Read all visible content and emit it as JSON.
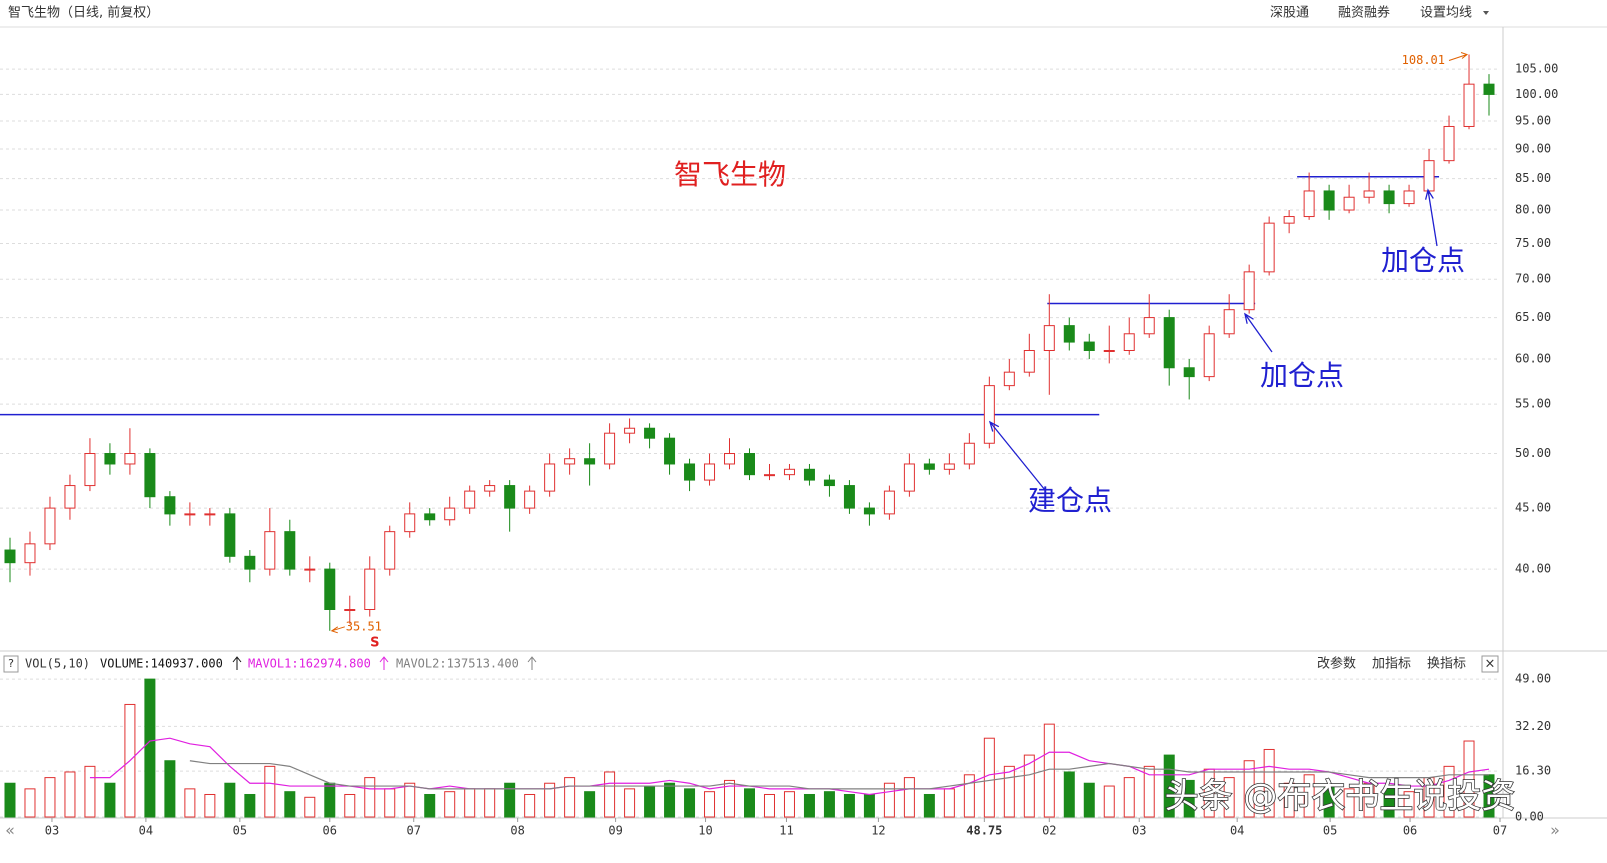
{
  "header": {
    "title": "智飞生物（日线, 前复权）",
    "menu": [
      "深股通",
      "融资融券",
      "设置均线"
    ]
  },
  "watermark": "头条 @布衣书生说投资",
  "nav": [
    "«",
    "»"
  ],
  "chart_data": [
    {
      "type": "candlestick",
      "title": "智飞生物",
      "log_scale": true,
      "grid": true,
      "up_color": "#e03030",
      "down_color": "#1a8a1a",
      "level_color": "#2020d0",
      "xlim": [
        -0.5,
        74.55
      ],
      "ylim": [
        34.35,
        113.9
      ],
      "yticks": [
        {
          "value": 40,
          "label": "40.00"
        },
        {
          "value": 45,
          "label": "45.00"
        },
        {
          "value": 50,
          "label": "50.00"
        },
        {
          "value": 55,
          "label": "55.00"
        },
        {
          "value": 60,
          "label": "60.00"
        },
        {
          "value": 65,
          "label": "65.00"
        },
        {
          "value": 70,
          "label": "70.00"
        },
        {
          "value": 75,
          "label": "75.00"
        },
        {
          "value": 80,
          "label": "80.00"
        },
        {
          "value": 85,
          "label": "85.00"
        },
        {
          "value": 90,
          "label": "90.00"
        },
        {
          "value": 95,
          "label": "95.00"
        },
        {
          "value": 100,
          "label": "100.00"
        },
        {
          "value": 105,
          "label": "105.00"
        }
      ],
      "ohlc": [
        [
          41.5,
          42.5,
          39,
          40.5
        ],
        [
          40.5,
          43,
          39.5,
          42
        ],
        [
          42,
          46,
          41.5,
          45
        ],
        [
          45,
          48,
          44,
          47
        ],
        [
          47,
          51.5,
          46.5,
          50
        ],
        [
          50,
          51,
          48,
          49
        ],
        [
          49,
          52.5,
          48,
          50
        ],
        [
          50,
          50.5,
          45,
          46
        ],
        [
          46,
          46.5,
          43.5,
          44.5
        ],
        [
          44.5,
          45.5,
          43.5,
          44.5
        ],
        [
          44.5,
          45,
          43.5,
          44.5
        ],
        [
          44.5,
          45,
          40.5,
          41
        ],
        [
          41,
          41.5,
          39,
          40
        ],
        [
          40,
          45,
          39.5,
          43
        ],
        [
          43,
          44,
          39.5,
          40
        ],
        [
          40,
          41,
          39,
          40
        ],
        [
          40,
          40.5,
          35.51,
          37
        ],
        [
          37,
          38,
          36,
          37
        ],
        [
          37,
          41,
          36.5,
          40
        ],
        [
          40,
          43.5,
          39.5,
          43
        ],
        [
          43,
          45.5,
          42.5,
          44.5
        ],
        [
          44.5,
          45,
          43.5,
          44
        ],
        [
          44,
          46,
          43.5,
          45
        ],
        [
          45,
          47,
          44.5,
          46.5
        ],
        [
          46.5,
          47.5,
          46,
          47
        ],
        [
          47,
          47.5,
          43,
          45
        ],
        [
          45,
          47,
          44.5,
          46.5
        ],
        [
          46.5,
          50,
          46,
          49
        ],
        [
          49,
          50.5,
          48,
          49.5
        ],
        [
          49.5,
          51,
          47,
          49
        ],
        [
          49,
          53,
          48.5,
          52
        ],
        [
          52,
          53.5,
          51,
          52.5
        ],
        [
          52.5,
          53,
          50.5,
          51.5
        ],
        [
          51.5,
          52,
          48,
          49
        ],
        [
          49,
          49.5,
          46.5,
          47.5
        ],
        [
          47.5,
          50,
          47,
          49
        ],
        [
          49,
          51.5,
          48.5,
          50
        ],
        [
          50,
          50.5,
          47.5,
          48
        ],
        [
          48,
          49,
          47.5,
          48
        ],
        [
          48,
          49,
          47.5,
          48.5
        ],
        [
          48.5,
          49,
          47,
          47.5
        ],
        [
          47.5,
          48,
          46,
          47
        ],
        [
          47,
          47.5,
          44.5,
          45
        ],
        [
          45,
          45.5,
          43.5,
          44.5
        ],
        [
          44.5,
          47,
          44,
          46.5
        ],
        [
          46.5,
          50,
          46,
          49
        ],
        [
          49,
          49.5,
          48,
          48.5
        ],
        [
          48.5,
          50,
          48,
          49
        ],
        [
          49,
          52,
          48.5,
          51
        ],
        [
          51,
          58,
          50.5,
          57
        ],
        [
          57,
          60,
          56.5,
          58.5
        ],
        [
          58.5,
          63,
          58,
          61
        ],
        [
          61,
          68,
          56,
          64
        ],
        [
          64,
          65,
          61,
          62
        ],
        [
          62,
          63,
          60,
          61
        ],
        [
          61,
          64,
          59.5,
          61
        ],
        [
          61,
          65,
          60.5,
          63
        ],
        [
          63,
          68,
          62.5,
          65
        ],
        [
          65,
          66,
          57,
          59
        ],
        [
          59,
          60,
          55.5,
          58
        ],
        [
          58,
          64,
          57.5,
          63
        ],
        [
          63,
          68,
          62.5,
          66
        ],
        [
          66,
          72,
          65.5,
          71
        ],
        [
          71,
          79,
          70.5,
          78
        ],
        [
          78,
          80,
          76.5,
          79
        ],
        [
          79,
          86,
          78.5,
          83
        ],
        [
          83,
          84,
          78.5,
          80
        ],
        [
          80,
          84,
          79.5,
          82
        ],
        [
          82,
          86,
          81,
          83
        ],
        [
          83,
          84,
          79.5,
          81
        ],
        [
          81,
          84,
          80.5,
          83
        ],
        [
          83,
          90,
          82.5,
          88
        ],
        [
          88,
          96,
          87.5,
          94
        ],
        [
          94,
          108.01,
          93.5,
          102
        ],
        [
          102,
          104,
          96,
          100
        ]
      ],
      "levels": [
        {
          "value": 53.9,
          "from": -0.5,
          "to": 54.5
        },
        {
          "value": 66.8,
          "from": 51.9,
          "to": 62.3
        },
        {
          "value": 85.3,
          "from": 64.4,
          "to": 71.5
        }
      ],
      "annotations": [
        "建仓点",
        "加仓点",
        "加仓点"
      ],
      "signal": "S"
    },
    {
      "type": "bar",
      "indicator": "VOL(5,10)",
      "grid": true,
      "readouts": [
        "VOLUME:140937.000",
        "MAVOL1:162974.800",
        "MAVOL2:137513.400"
      ],
      "buttons": [
        "改参数",
        "加指标",
        "换指标"
      ],
      "help": "?",
      "close": "×",
      "xlim": [
        -0.5,
        74.55
      ],
      "ylim": [
        0,
        49.4
      ],
      "yticks": [
        {
          "value": 0,
          "label": "0.00"
        },
        {
          "value": 16.3,
          "label": "16.30"
        },
        {
          "value": 32.2,
          "label": "32.20"
        },
        {
          "value": 49,
          "label": "49.00"
        }
      ],
      "xticks": [
        {
          "value": 2.1,
          "label": "03"
        },
        {
          "value": 6.8,
          "label": "04"
        },
        {
          "value": 11.5,
          "label": "05"
        },
        {
          "value": 16,
          "label": "06"
        },
        {
          "value": 20.2,
          "label": "07"
        },
        {
          "value": 25.4,
          "label": "08"
        },
        {
          "value": 30.3,
          "label": "09"
        },
        {
          "value": 34.8,
          "label": "10"
        },
        {
          "value": 38.85,
          "label": "11"
        },
        {
          "value": 43.45,
          "label": "12"
        },
        48.75,
        {
          "value": 52,
          "label": "02"
        },
        {
          "value": 56.5,
          "label": "03"
        },
        {
          "value": 61.4,
          "label": "04"
        },
        {
          "value": 66.05,
          "label": "05"
        },
        {
          "value": 70.05,
          "label": "06"
        },
        {
          "value": 74.55,
          "label": "07"
        }
      ],
      "values": [
        12,
        10,
        14,
        16,
        18,
        12,
        40,
        49,
        20,
        10,
        8,
        12,
        8,
        18,
        9,
        7,
        12,
        8,
        14,
        10,
        12,
        8,
        9,
        10,
        10,
        12,
        8,
        12,
        14,
        9,
        16,
        10,
        11,
        12,
        10,
        9,
        13,
        10,
        8,
        9,
        8,
        9,
        8,
        8,
        12,
        14,
        8,
        10,
        15,
        28,
        18,
        22,
        33,
        16,
        12,
        11,
        14,
        18,
        22,
        13,
        17,
        14,
        20,
        24,
        12,
        15,
        11,
        10,
        12,
        10,
        9,
        14,
        18,
        27,
        15
      ],
      "series": [
        {
          "color": "#e020e0",
          "values": [
            null,
            null,
            null,
            null,
            14,
            14,
            20,
            27,
            28,
            26,
            25,
            18,
            12,
            12,
            11,
            11,
            11,
            11,
            10,
            10,
            11,
            10,
            11,
            10,
            10,
            10,
            10,
            10,
            11,
            11,
            12,
            12,
            12,
            13,
            12,
            10,
            11,
            11,
            10,
            10,
            10,
            10,
            9,
            8,
            9,
            10,
            10,
            10,
            12,
            15,
            16,
            19,
            23,
            23,
            20,
            19,
            18,
            15,
            15,
            15,
            17,
            17,
            17,
            18,
            17,
            17,
            16,
            14,
            12,
            12,
            11,
            11,
            13,
            16,
            17
          ]
        },
        {
          "color": "#808080",
          "values": [
            null,
            null,
            null,
            null,
            null,
            null,
            null,
            null,
            null,
            20,
            19,
            19,
            19,
            19,
            18,
            15,
            12,
            11,
            11,
            11,
            11,
            10,
            10,
            10,
            10,
            10,
            10,
            10,
            11,
            11,
            11,
            11,
            11,
            11,
            11,
            11,
            12,
            11,
            11,
            11,
            10,
            10,
            10,
            10,
            10,
            10,
            10,
            11,
            12,
            13,
            14,
            15,
            17,
            17,
            18,
            19,
            18,
            17,
            17,
            16,
            16,
            16,
            16,
            16,
            16,
            16,
            16,
            15,
            14,
            14,
            14,
            14,
            15,
            15,
            15
          ]
        }
      ]
    }
  ]
}
